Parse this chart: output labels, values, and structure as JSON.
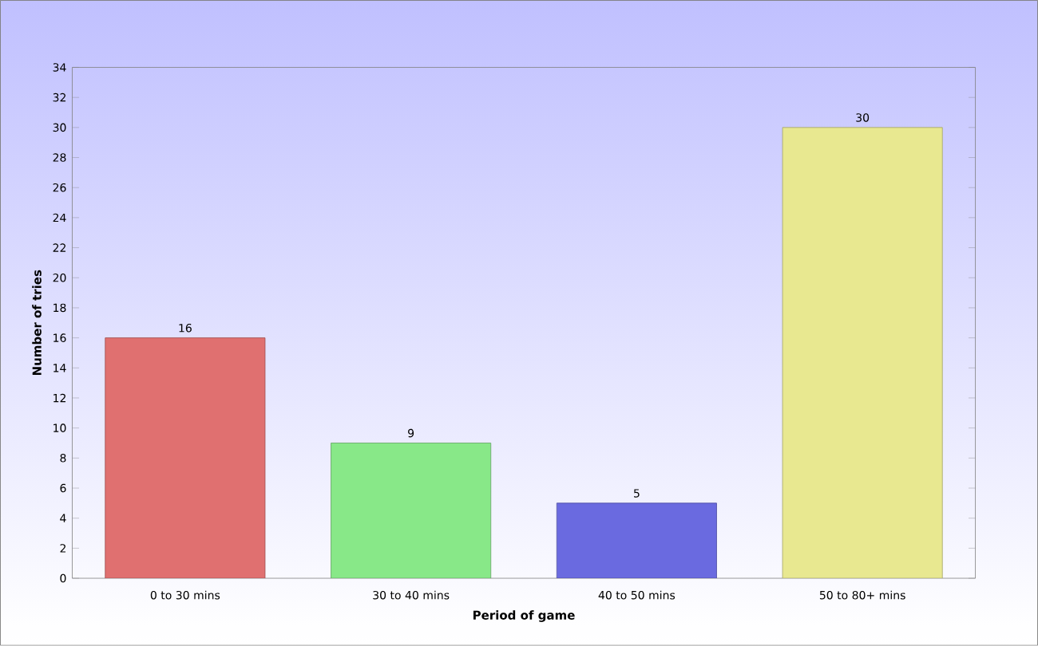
{
  "chart_data": {
    "type": "bar",
    "xlabel": "Period of game",
    "ylabel": "Number of tries",
    "categories": [
      "0 to 30 mins",
      "30 to 40 mins",
      "40 to 50 mins",
      "50 to 80+ mins"
    ],
    "values": [
      16,
      9,
      5,
      30
    ],
    "colors": [
      "#e07070",
      "#88e888",
      "#6a6ae0",
      "#e8e890"
    ],
    "ylim": [
      0,
      34
    ],
    "yticks": [
      0,
      2,
      4,
      6,
      8,
      10,
      12,
      14,
      16,
      18,
      20,
      22,
      24,
      26,
      28,
      30,
      32,
      34
    ],
    "data_labels": true
  }
}
